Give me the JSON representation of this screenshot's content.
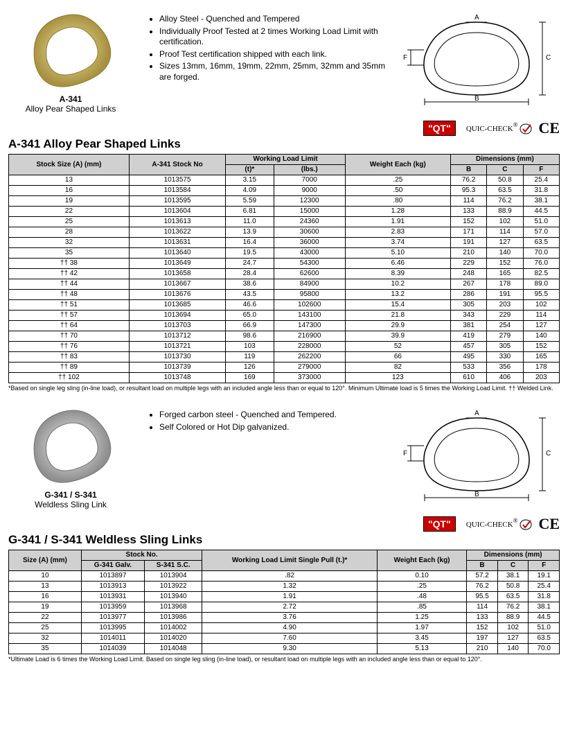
{
  "section1": {
    "product_code": "A-341",
    "product_name": "Alloy Pear Shaped Links",
    "bullets": [
      "Alloy Steel - Quenched and Tempered",
      "Individually Proof Tested at 2 times Working Load Limit with certification.",
      "Proof Test certification shipped with each link.",
      "Sizes 13mm, 16mm, 19mm, 22mm, 25mm, 32mm and 35mm are forged."
    ],
    "title": "A-341 Alloy Pear Shaped Links",
    "image_fill": "#d4c878",
    "image_stroke": "#b0a050",
    "headers": {
      "size": "Stock Size (A) (mm)",
      "stock": "A-341 Stock No",
      "wll": "Working Load Limit",
      "t": "(t)*",
      "lbs": "(lbs.)",
      "weight": "Weight Each (kg)",
      "dim": "Dimensions (mm)",
      "b": "B",
      "c": "C",
      "f": "F"
    },
    "rows": [
      [
        "13",
        "1013575",
        "3.15",
        "7000",
        ".25",
        "76.2",
        "50.8",
        "25.4"
      ],
      [
        "16",
        "1013584",
        "4.09",
        "9000",
        ".50",
        "95.3",
        "63.5",
        "31.8"
      ],
      [
        "19",
        "1013595",
        "5.59",
        "12300",
        ".80",
        "114",
        "76.2",
        "38.1"
      ],
      [
        "22",
        "1013604",
        "6.81",
        "15000",
        "1.28",
        "133",
        "88.9",
        "44.5"
      ],
      [
        "25",
        "1013613",
        "11.0",
        "24360",
        "1.91",
        "152",
        "102",
        "51.0"
      ],
      [
        "28",
        "1013622",
        "13.9",
        "30600",
        "2.83",
        "171",
        "114",
        "57.0"
      ],
      [
        "32",
        "1013631",
        "16.4",
        "36000",
        "3.74",
        "191",
        "127",
        "63.5"
      ],
      [
        "35",
        "1013640",
        "19.5",
        "43000",
        "5.10",
        "210",
        "140",
        "70.0"
      ],
      [
        "†† 38",
        "1013649",
        "24.7",
        "54300",
        "6.46",
        "229",
        "152",
        "76.0"
      ],
      [
        "†† 42",
        "1013658",
        "28.4",
        "62600",
        "8.39",
        "248",
        "165",
        "82.5"
      ],
      [
        "†† 44",
        "1013667",
        "38.6",
        "84900",
        "10.2",
        "267",
        "178",
        "89.0"
      ],
      [
        "†† 48",
        "1013676",
        "43.5",
        "95800",
        "13.2",
        "286",
        "191",
        "95.5"
      ],
      [
        "†† 51",
        "1013685",
        "46.6",
        "102600",
        "15.4",
        "305",
        "203",
        "102"
      ],
      [
        "†† 57",
        "1013694",
        "65.0",
        "143100",
        "21.8",
        "343",
        "229",
        "114"
      ],
      [
        "†† 64",
        "1013703",
        "66.9",
        "147300",
        "29.9",
        "381",
        "254",
        "127"
      ],
      [
        "†† 70",
        "1013712",
        "98.6",
        "216900",
        "39.9",
        "419",
        "279",
        "140"
      ],
      [
        "†† 76",
        "1013721",
        "103",
        "228000",
        "52",
        "457",
        "305",
        "152"
      ],
      [
        "†† 83",
        "1013730",
        "119",
        "262200",
        "66",
        "495",
        "330",
        "165"
      ],
      [
        "†† 89",
        "1013739",
        "126",
        "279000",
        "82",
        "533",
        "356",
        "178"
      ],
      [
        "†† 102",
        "1013748",
        "169",
        "373000",
        "123",
        "610",
        "406",
        "203"
      ]
    ],
    "footnote": "*Based on single leg sling (in-line load), or resultant load on multiple legs with an included angle less than or equal to 120°.  Minimum Ultimate load is 5 times the Working Load Limit.  †† Welded Link."
  },
  "section2": {
    "product_code": "G-341 / S-341",
    "product_name": "Weldless Sling Link",
    "bullets": [
      "Forged carbon steel - Quenched and Tempered.",
      "Self Colored or Hot Dip galvanized."
    ],
    "title": "G-341 / S-341 Weldless Sling Links",
    "image_fill": "#d8d8d8",
    "image_stroke": "#a0a0a0",
    "headers": {
      "size": "Size (A) (mm)",
      "stock": "Stock No.",
      "g": "G-341 Galv.",
      "s": "S-341 S.C.",
      "wll": "Working Load Limit Single Pull (t.)*",
      "weight": "Weight Each (kg)",
      "dim": "Dimensions (mm)",
      "b": "B",
      "c": "C",
      "f": "F"
    },
    "rows": [
      [
        "10",
        "1013897",
        "1013904",
        ".82",
        "0.10",
        "57.2",
        "38.1",
        "19.1"
      ],
      [
        "13",
        "1013913",
        "1013922",
        "1.32",
        ".25",
        "76.2",
        "50.8",
        "25.4"
      ],
      [
        "16",
        "1013931",
        "1013940",
        "1.91",
        ".48",
        "95.5",
        "63.5",
        "31.8"
      ],
      [
        "19",
        "1013959",
        "1013968",
        "2.72",
        ".85",
        "114",
        "76.2",
        "38.1"
      ],
      [
        "22",
        "1013977",
        "1013986",
        "3.76",
        "1.25",
        "133",
        "88.9",
        "44.5"
      ],
      [
        "25",
        "1013995",
        "1014002",
        "4.90",
        "1.97",
        "152",
        "102",
        "51.0"
      ],
      [
        "32",
        "1014011",
        "1014020",
        "7.60",
        "3.45",
        "197",
        "127",
        "63.5"
      ],
      [
        "35",
        "1014039",
        "1014048",
        "9.30",
        "5.13",
        "210",
        "140",
        "70.0"
      ]
    ],
    "footnote": "*Ultimate Load is 6 times the Working Load Limit. Based on single leg sling (in-line load), or resultant load on multiple legs with an included angle less than or equal to 120°."
  },
  "badges": {
    "qt": "\"QT\"",
    "qc": "QUIC-CHECK",
    "ce": "CE"
  }
}
